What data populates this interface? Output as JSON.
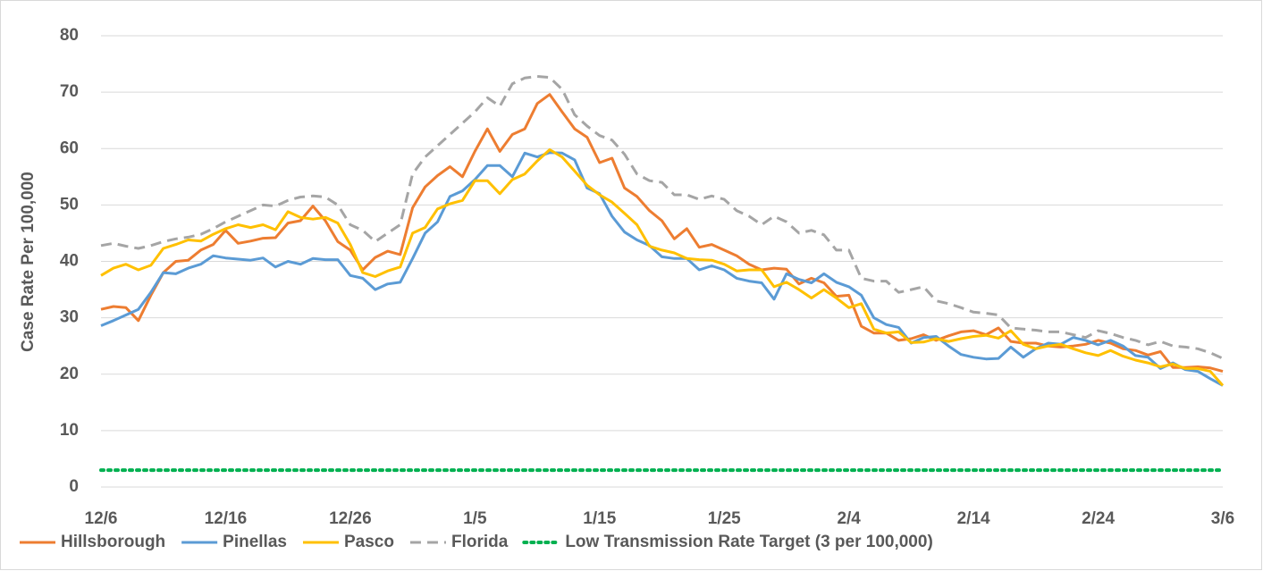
{
  "chart_data": {
    "type": "line",
    "y_label": "Case Rate Per 100,000",
    "categories": [
      "12/6",
      null,
      null,
      null,
      null,
      null,
      null,
      null,
      null,
      null,
      "12/16",
      null,
      null,
      null,
      null,
      null,
      null,
      null,
      null,
      null,
      "12/26",
      null,
      null,
      null,
      null,
      null,
      null,
      null,
      null,
      null,
      "1/5",
      null,
      null,
      null,
      null,
      null,
      null,
      null,
      null,
      null,
      "1/15",
      null,
      null,
      null,
      null,
      null,
      null,
      null,
      null,
      null,
      "1/25",
      null,
      null,
      null,
      null,
      null,
      null,
      null,
      null,
      null,
      "2/4",
      null,
      null,
      null,
      null,
      null,
      null,
      null,
      null,
      null,
      "2/14",
      null,
      null,
      null,
      null,
      null,
      null,
      null,
      null,
      null,
      "2/24",
      null,
      null,
      null,
      null,
      null,
      null,
      null,
      null,
      null,
      "3/6"
    ],
    "ylim": [
      0,
      80
    ],
    "yticks": [
      0,
      10,
      20,
      30,
      40,
      50,
      60,
      70,
      80
    ],
    "grid": true,
    "legend": "bottom",
    "series": [
      {
        "name": "Hillsborough",
        "color": "#ED7D31",
        "dash": "solid",
        "values": [
          31.5,
          32,
          31.8,
          29.5,
          34,
          38,
          40,
          40.2,
          42,
          43,
          45.5,
          43.2,
          43.6,
          44.1,
          44.2,
          46.8,
          47.2,
          49.8,
          47.2,
          43.5,
          42,
          38.5,
          40.7,
          41.8,
          41.2,
          49.5,
          53.2,
          55.2,
          56.8,
          55,
          59.5,
          63.5,
          59.5,
          62.5,
          63.5,
          68,
          69.6,
          66.5,
          63.5,
          62,
          57.5,
          58.3,
          53,
          51.5,
          49,
          47.2,
          44,
          45.8,
          42.5,
          43,
          42,
          41,
          39.5,
          38.5,
          38.8,
          38.6,
          36,
          37,
          36.2,
          33.8,
          34,
          28.5,
          27.3,
          27.3,
          26,
          26.3,
          27,
          26,
          26.8,
          27.5,
          27.7,
          27,
          28.2,
          25.8,
          25.5,
          25.5,
          25,
          24.8,
          25,
          25.3,
          26,
          25.5,
          24.5,
          24.2,
          23.4,
          24,
          21.2,
          21.2,
          21.3,
          21.1,
          20.5
        ]
      },
      {
        "name": "Pinellas",
        "color": "#5B9BD5",
        "dash": "solid",
        "values": [
          28.6,
          29.5,
          30.5,
          31.5,
          34.5,
          38,
          37.8,
          38.8,
          39.5,
          41,
          40.6,
          40.4,
          40.2,
          40.6,
          39,
          40,
          39.5,
          40.5,
          40.3,
          40.3,
          37.5,
          37,
          35,
          36,
          36.3,
          40.5,
          45,
          47,
          51.5,
          52.5,
          54.5,
          57,
          57,
          55,
          59.2,
          58.5,
          59.3,
          59.2,
          58,
          53,
          52,
          48,
          45.2,
          43.8,
          42.8,
          40.8,
          40.5,
          40.5,
          38.5,
          39.2,
          38.5,
          37,
          36.5,
          36.2,
          33.3,
          37.8,
          36.8,
          36.2,
          37.8,
          36.3,
          35.5,
          34,
          30,
          28.8,
          28.3,
          25.5,
          26.5,
          26.7,
          25,
          23.5,
          23,
          22.7,
          22.8,
          24.8,
          23,
          24.5,
          25.5,
          25.3,
          26.5,
          26,
          25.2,
          26,
          25,
          23.3,
          23,
          21,
          22,
          20.8,
          20.5,
          19.2,
          18
        ]
      },
      {
        "name": "Pasco",
        "color": "#FFC000",
        "dash": "solid",
        "values": [
          37.5,
          38.8,
          39.5,
          38.5,
          39.3,
          42.3,
          43,
          43.8,
          43.6,
          44.8,
          45.8,
          46.5,
          46,
          46.5,
          45.6,
          48.8,
          47.8,
          47.5,
          47.8,
          46.8,
          43,
          38,
          37.3,
          38.3,
          39,
          45,
          46,
          49.3,
          50.2,
          50.8,
          54.3,
          54.3,
          52,
          54.5,
          55.5,
          57.8,
          59.8,
          58.5,
          56,
          53.5,
          51.8,
          50.5,
          48.5,
          46.5,
          42.7,
          42,
          41.5,
          40.5,
          40.3,
          40.2,
          39.5,
          38.3,
          38.5,
          38.5,
          35.5,
          36.3,
          35,
          33.5,
          35,
          33.5,
          31.8,
          32.5,
          28,
          27.3,
          27.5,
          25.6,
          25.7,
          26.3,
          25.8,
          26.3,
          26.7,
          26.9,
          26.4,
          27.7,
          25.3,
          24.5,
          25,
          25.3,
          24.5,
          23.8,
          23.3,
          24.2,
          23.2,
          22.5,
          22,
          21.3,
          21.8,
          21,
          21,
          20.5,
          18
        ]
      },
      {
        "name": "Florida",
        "color": "#A5A5A5",
        "dash": "dashed",
        "values": [
          42.8,
          43.2,
          42.7,
          42.3,
          42.8,
          43.5,
          44,
          44.3,
          44.8,
          45.8,
          47,
          48,
          49,
          50,
          49.8,
          50.8,
          51.4,
          51.6,
          51.4,
          50,
          46.5,
          45.5,
          43.5,
          45,
          46.5,
          55.5,
          58.5,
          60.5,
          62.5,
          64.5,
          66.5,
          69,
          67.5,
          71.5,
          72.5,
          72.8,
          72.6,
          70.5,
          66,
          64,
          62.3,
          61.5,
          59,
          55.5,
          54.3,
          54,
          51.8,
          51.8,
          51,
          51.6,
          51,
          49,
          48,
          46.5,
          48,
          47,
          45,
          45.5,
          44.7,
          42,
          42,
          37,
          36.5,
          36.5,
          34.5,
          35,
          35.5,
          33,
          32.5,
          31.8,
          31,
          30.8,
          30.5,
          28.2,
          28,
          27.8,
          27.5,
          27.5,
          27,
          26.5,
          27.7,
          27.2,
          26.5,
          26,
          25.2,
          25.8,
          25,
          24.8,
          24.5,
          23.8,
          22.8
        ]
      },
      {
        "name": "Low Transmission Rate Target (3 per 100,000)",
        "color": "#00B050",
        "dash": "dotted",
        "values": [
          3,
          3,
          3,
          3,
          3,
          3,
          3,
          3,
          3,
          3,
          3,
          3,
          3,
          3,
          3,
          3,
          3,
          3,
          3,
          3,
          3,
          3,
          3,
          3,
          3,
          3,
          3,
          3,
          3,
          3,
          3,
          3,
          3,
          3,
          3,
          3,
          3,
          3,
          3,
          3,
          3,
          3,
          3,
          3,
          3,
          3,
          3,
          3,
          3,
          3,
          3,
          3,
          3,
          3,
          3,
          3,
          3,
          3,
          3,
          3,
          3,
          3,
          3,
          3,
          3,
          3,
          3,
          3,
          3,
          3,
          3,
          3,
          3,
          3,
          3,
          3,
          3,
          3,
          3,
          3,
          3,
          3,
          3,
          3,
          3,
          3,
          3,
          3,
          3,
          3,
          3
        ]
      }
    ]
  }
}
